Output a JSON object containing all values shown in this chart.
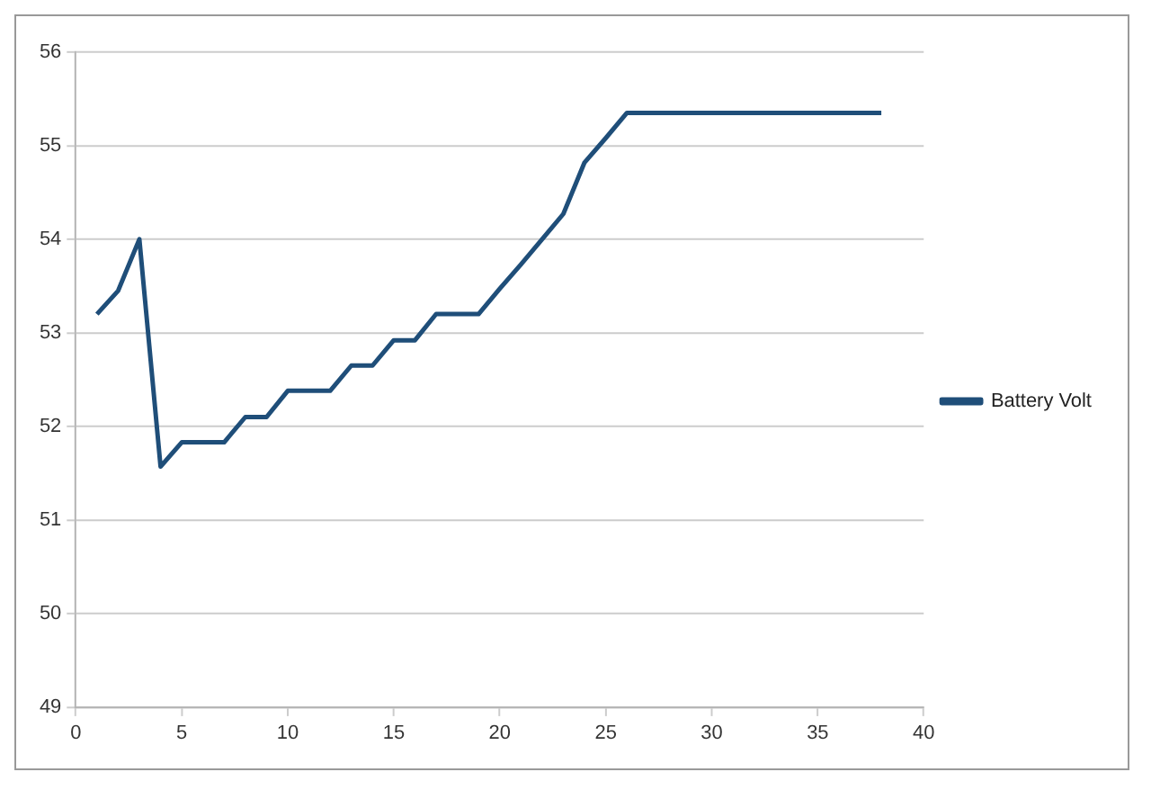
{
  "chart_data": {
    "type": "line",
    "x": [
      1,
      2,
      3,
      4,
      5,
      6,
      7,
      8,
      9,
      10,
      11,
      12,
      13,
      14,
      15,
      16,
      17,
      18,
      19,
      20,
      21,
      22,
      23,
      24,
      25,
      26,
      27,
      28,
      29,
      30,
      31,
      32,
      33,
      34,
      35,
      36,
      37,
      38
    ],
    "series": [
      {
        "name": "Battery Volt",
        "color": "#1f4e79",
        "values": [
          53.2,
          53.45,
          54.0,
          51.57,
          51.83,
          51.83,
          51.83,
          52.1,
          52.1,
          52.38,
          52.38,
          52.38,
          52.65,
          52.65,
          52.92,
          52.92,
          53.2,
          53.2,
          53.2,
          53.47,
          53.73,
          54.0,
          54.27,
          54.82,
          55.08,
          55.35,
          55.35,
          55.35,
          55.35,
          55.35,
          55.35,
          55.35,
          55.35,
          55.35,
          55.35,
          55.35,
          55.35,
          55.35
        ]
      }
    ],
    "xlim": [
      0,
      40
    ],
    "xticks": [
      0,
      5,
      10,
      15,
      20,
      25,
      30,
      35,
      40
    ],
    "ylim": [
      49,
      56
    ],
    "yticks": [
      49,
      50,
      51,
      52,
      53,
      54,
      55,
      56
    ],
    "grid": "y",
    "legend": "right",
    "marker": "none",
    "line_style": "solid"
  }
}
